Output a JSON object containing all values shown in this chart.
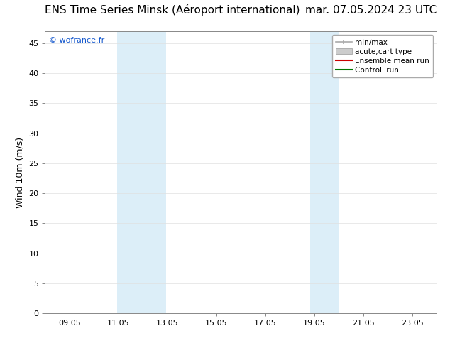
{
  "title_left": "ENS Time Series Minsk (Aéroport international)",
  "title_right": "mar. 07.05.2024 23 UTC",
  "ylabel": "Wind 10m (m/s)",
  "bg_color": "#ffffff",
  "plot_bg_color": "#ffffff",
  "shaded_regions": [
    {
      "xstart": 11.0,
      "xend": 13.0
    },
    {
      "xstart": 18.9,
      "xend": 20.05
    }
  ],
  "shaded_color": "#dceef8",
  "xlim": [
    8.05,
    24.05
  ],
  "ylim": [
    0,
    47
  ],
  "xticks": [
    9.05,
    11.05,
    13.05,
    15.05,
    17.05,
    19.05,
    21.05,
    23.05
  ],
  "xtick_labels": [
    "09.05",
    "11.05",
    "13.05",
    "15.05",
    "17.05",
    "19.05",
    "21.05",
    "23.05"
  ],
  "yticks": [
    0,
    5,
    10,
    15,
    20,
    25,
    30,
    35,
    40,
    45
  ],
  "legend_items": [
    {
      "label": "min/max",
      "color": "#aaaaaa",
      "lw": 1.2,
      "type": "errorbar"
    },
    {
      "label": "acute;cart type",
      "color": "#cccccc",
      "lw": 6,
      "type": "band"
    },
    {
      "label": "Ensemble mean run",
      "color": "#cc0000",
      "lw": 1.5,
      "type": "line"
    },
    {
      "label": "Controll run",
      "color": "#007700",
      "lw": 1.5,
      "type": "line"
    }
  ],
  "watermark": "© wofrance.fr",
  "watermark_color": "#1155cc",
  "title_fontsize": 11,
  "axis_fontsize": 9,
  "tick_fontsize": 8,
  "legend_fontsize": 7.5
}
